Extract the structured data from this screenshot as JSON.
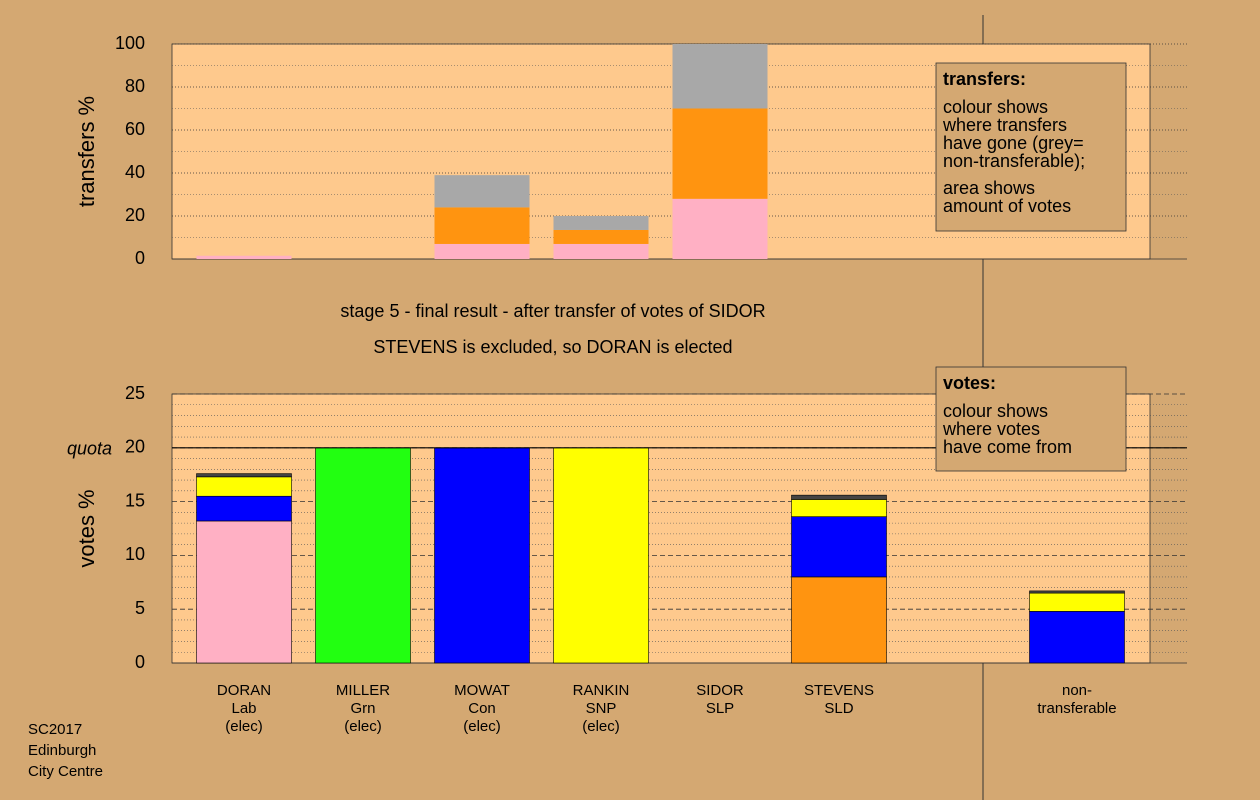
{
  "footer": [
    "SC2017",
    "Edinburgh",
    "City Centre"
  ],
  "stage": "stage 5 - final result - after transfer of votes of SIDOR",
  "result": "STEVENS is excluded, so DORAN is elected",
  "chart_data": [
    {
      "type": "bar",
      "stacked": true,
      "ylabel": "transfers %",
      "ylim": [
        0,
        100
      ],
      "yticks": [
        0,
        20,
        40,
        60,
        80,
        100
      ],
      "note_title": "transfers:",
      "note": [
        [
          "colour shows",
          "where transfers",
          "have gone (grey=",
          "non-transferable);"
        ],
        [
          "area shows",
          "amount of votes"
        ]
      ],
      "series": [
        {
          "color": "#ffb0c4",
          "values": [
            1.5,
            0,
            7,
            7,
            28,
            0,
            null,
            0
          ]
        },
        {
          "color": "#ff9410",
          "values": [
            0,
            0,
            17,
            6.5,
            42,
            0,
            null,
            0
          ]
        },
        {
          "color": "#a8a8a8",
          "values": [
            0,
            0,
            15,
            6.5,
            30,
            0,
            null,
            0
          ]
        }
      ]
    },
    {
      "type": "bar",
      "stacked": true,
      "ylabel": "votes %",
      "ylim": [
        0,
        25
      ],
      "yticks": [
        0,
        5,
        10,
        15,
        20,
        25
      ],
      "quota": 20,
      "quota_label": "quota",
      "note_title": "votes:",
      "note": [
        [
          "colour shows",
          "where votes",
          "have come from"
        ]
      ],
      "categories": [
        [
          "DORAN",
          "Lab",
          "(elec)"
        ],
        [
          "MILLER",
          "Grn",
          "(elec)"
        ],
        [
          "MOWAT",
          "Con",
          "(elec)"
        ],
        [
          "RANKIN",
          "SNP",
          "(elec)"
        ],
        [
          "SIDOR",
          "SLP"
        ],
        [
          "STEVENS",
          "SLD"
        ],
        null,
        [
          "non-",
          "transferable"
        ]
      ],
      "series": [
        {
          "color": "#ffb0c4",
          "values": [
            13.2,
            0,
            0,
            0,
            0,
            0,
            null,
            0
          ]
        },
        {
          "color": "#ff9410",
          "values": [
            0,
            0,
            0,
            0,
            0,
            8.0,
            null,
            0
          ]
        },
        {
          "color": "#0000ff",
          "values": [
            2.3,
            0,
            20,
            0,
            0,
            5.6,
            null,
            4.8
          ]
        },
        {
          "color": "#ffff00",
          "values": [
            1.8,
            0,
            0,
            20,
            0,
            1.6,
            null,
            1.7
          ]
        },
        {
          "color": "#22ff11",
          "values": [
            0,
            20,
            0,
            0,
            0,
            0,
            null,
            0
          ]
        },
        {
          "color": "#444444",
          "values": [
            0.3,
            0,
            0,
            0,
            0,
            0.4,
            null,
            0.2
          ]
        }
      ]
    }
  ]
}
